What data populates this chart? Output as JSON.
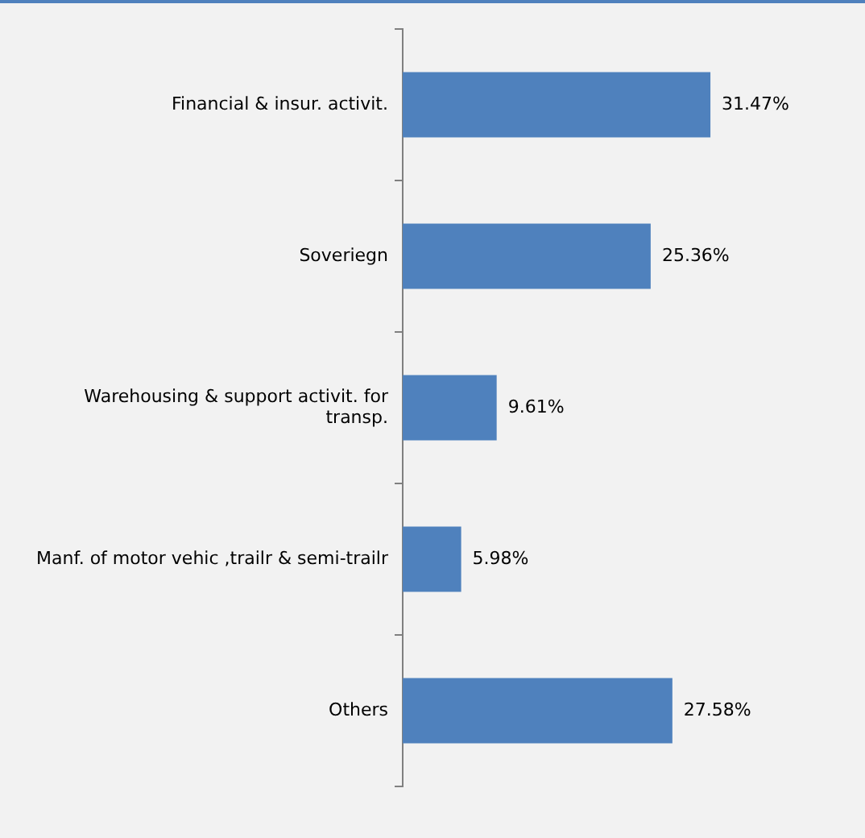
{
  "chart_data": {
    "type": "bar",
    "orientation": "horizontal",
    "categories": [
      "Financial & insur. activit.",
      "Soveriegn",
      "Warehousing & support activit. for transp.",
      "Manf. of motor vehic ,trailr & semi-trailr",
      "Others"
    ],
    "values": [
      31.47,
      25.36,
      9.61,
      5.98,
      27.58
    ],
    "value_labels": [
      "31.47%",
      "25.36%",
      "9.61%",
      "5.98%",
      "27.58%"
    ],
    "color": "#4f81bd",
    "grid": false,
    "legend": false
  }
}
